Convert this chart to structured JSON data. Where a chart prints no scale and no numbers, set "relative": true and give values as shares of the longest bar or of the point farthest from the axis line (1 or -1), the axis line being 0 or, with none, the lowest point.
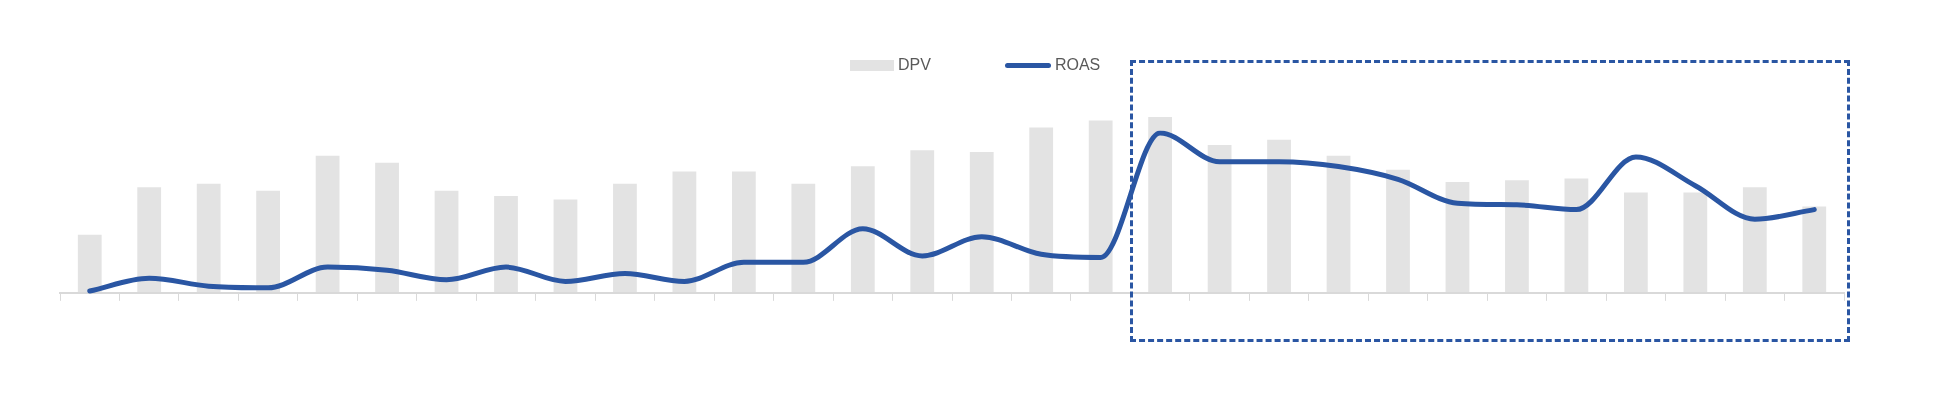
{
  "chart_data": [
    {
      "type": "bar",
      "relative": true,
      "categories": [
        null,
        null,
        null,
        null,
        null,
        null,
        null,
        null,
        null,
        null,
        null,
        null,
        null,
        null,
        null,
        null,
        null,
        null,
        null,
        null,
        null,
        null,
        null,
        null,
        null,
        null,
        null,
        null,
        null,
        null
      ],
      "legend": "top",
      "grid": false,
      "series": [
        {
          "name": "DPV",
          "color": "#e3e3e3",
          "values": [
            0.33,
            0.6,
            0.62,
            0.58,
            0.78,
            0.74,
            0.58,
            0.55,
            0.53,
            0.62,
            0.69,
            0.69,
            0.62,
            0.72,
            0.81,
            0.8,
            0.94,
            0.98,
            1,
            0.84,
            0.87,
            0.78,
            0.7,
            0.63,
            0.64,
            0.65,
            0.57,
            0.57,
            0.6,
            0.49
          ]
        }
      ]
    },
    {
      "type": "line",
      "relative": true,
      "categories": [
        null,
        null,
        null,
        null,
        null,
        null,
        null,
        null,
        null,
        null,
        null,
        null,
        null,
        null,
        null,
        null,
        null,
        null,
        null,
        null,
        null,
        null,
        null,
        null,
        null,
        null,
        null,
        null,
        null,
        null
      ],
      "legend": "top",
      "grid": false,
      "marker": "none",
      "series": [
        {
          "name": "ROAS",
          "color": "#2a56a3",
          "values": [
            0.01,
            0.09,
            0.04,
            0.03,
            0.16,
            0.14,
            0.08,
            0.16,
            0.07,
            0.12,
            0.07,
            0.19,
            0.19,
            0.4,
            0.23,
            0.35,
            0.24,
            0.22,
            1,
            0.82,
            0.82,
            0.79,
            0.71,
            0.56,
            0.55,
            0.52,
            0.85,
            0.67,
            0.46,
            0.52
          ]
        }
      ]
    }
  ]
}
